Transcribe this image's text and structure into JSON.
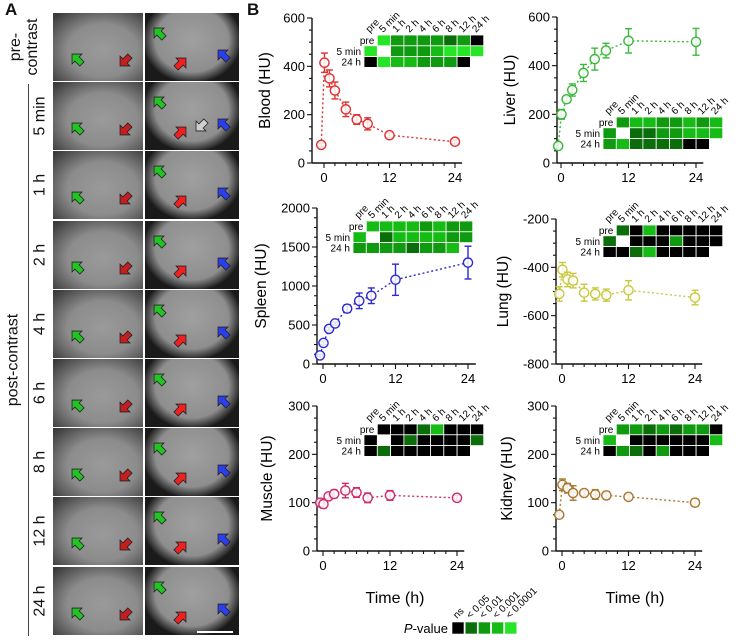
{
  "panel_a": {
    "letter": "A",
    "pre_label": "pre-\ncontrast",
    "post_label": "post-contrast",
    "rows": [
      "pre-contrast",
      "5 min",
      "1 h",
      "2 h",
      "4 h",
      "6 h",
      "8 h",
      "12 h",
      "24 h"
    ],
    "arrow_colors": {
      "lung": "#22c322",
      "blood": "#c41e1e",
      "red": "#f02020",
      "blue": "#2a3ef0",
      "gray": "#cfcfcf"
    }
  },
  "panel_b": {
    "letter": "B",
    "xlabel": "Time (h)"
  },
  "legend": {
    "title_italic": "P",
    "title_rest": "-value",
    "levels": [
      "ns",
      "< 0.05",
      "< 0.01",
      "< 0.001",
      "< 0.0001"
    ],
    "colors": [
      "#000000",
      "#0b6e0b",
      "#109a10",
      "#16bb16",
      "#26e426"
    ]
  },
  "heatmap_columns": [
    "pre",
    "5 min",
    "1 h",
    "2 h",
    "4 h",
    "6 h",
    "8 h",
    "12 h",
    "24 h"
  ],
  "heatmap_rows": [
    "pre",
    "5 min",
    "24 h"
  ],
  "chart_data": [
    {
      "id": "blood",
      "type": "line",
      "ylabel": "Blood (HU)",
      "color": "#e03030",
      "x": [
        -0.5,
        0.083,
        1,
        2,
        4,
        6,
        8,
        12,
        24
      ],
      "y": [
        75,
        415,
        350,
        300,
        222,
        180,
        162,
        115,
        88
      ],
      "err": [
        8,
        40,
        35,
        35,
        30,
        20,
        25,
        10,
        8
      ],
      "ylim": [
        0,
        600
      ],
      "yticks": [
        0,
        200,
        400,
        600
      ],
      "xticks": [
        0,
        12,
        24
      ],
      "heatmap": {
        "pre": [
          4,
          2,
          2,
          2,
          2,
          1,
          2,
          0
        ],
        "5 min": [
          4,
          null,
          2,
          2,
          2,
          3,
          4,
          4,
          4
        ],
        "24 h": [
          0,
          4,
          3,
          3,
          2,
          2,
          2,
          0
        ]
      }
    },
    {
      "id": "liver",
      "type": "line",
      "ylabel": "Liver (HU)",
      "color": "#3cb83c",
      "x": [
        -0.5,
        0.083,
        1,
        2,
        4,
        6,
        8,
        12,
        24
      ],
      "y": [
        70,
        200,
        262,
        300,
        370,
        427,
        462,
        502,
        498
      ],
      "err": [
        8,
        20,
        15,
        25,
        35,
        45,
        30,
        50,
        55
      ],
      "ylim": [
        0,
        600
      ],
      "yticks": [
        0,
        200,
        400,
        600
      ],
      "xticks": [
        0,
        12,
        24
      ],
      "heatmap": {
        "pre": [
          2,
          3,
          3,
          2,
          2,
          3,
          2,
          3
        ],
        "5 min": [
          2,
          null,
          1,
          1,
          2,
          2,
          3,
          3,
          3
        ],
        "24 h": [
          2,
          3,
          1,
          1,
          1,
          1,
          0,
          0
        ]
      }
    },
    {
      "id": "spleen",
      "type": "line",
      "ylabel": "Spleen (HU)",
      "color": "#2b2bd0",
      "x": [
        -0.5,
        0.083,
        1,
        2,
        4,
        6,
        8,
        12,
        24
      ],
      "y": [
        110,
        270,
        450,
        520,
        710,
        810,
        875,
        1080,
        1300
      ],
      "err": [
        15,
        20,
        20,
        20,
        50,
        100,
        100,
        200,
        210
      ],
      "ylim": [
        0,
        2000
      ],
      "yticks": [
        0,
        500,
        1000,
        1500,
        2000
      ],
      "xticks": [
        0,
        12,
        24
      ],
      "heatmap": {
        "pre": [
          3,
          3,
          3,
          3,
          2,
          3,
          2,
          2
        ],
        "5 min": [
          3,
          null,
          1,
          3,
          3,
          3,
          3,
          2,
          2
        ],
        "24 h": [
          2,
          2,
          2,
          2,
          1,
          2,
          2,
          3
        ]
      }
    },
    {
      "id": "lung",
      "type": "line",
      "ylabel": "Lung (HU)",
      "color": "#c8c840",
      "x": [
        -0.5,
        0.083,
        1,
        2,
        4,
        6,
        8,
        12,
        24
      ],
      "y": [
        -510,
        -410,
        -450,
        -455,
        -505,
        -510,
        -515,
        -495,
        -525
      ],
      "err": [
        30,
        30,
        30,
        30,
        35,
        25,
        25,
        40,
        30
      ],
      "ylim": [
        -800,
        -200
      ],
      "yticks": [
        -800,
        -600,
        -400,
        -200
      ],
      "xticks": [
        0,
        12,
        24
      ],
      "heatmap": {
        "pre": [
          1,
          0,
          3,
          0,
          0,
          0,
          0,
          0
        ],
        "5 min": [
          1,
          null,
          0,
          0,
          0,
          2,
          0,
          0,
          0
        ],
        "24 h": [
          0,
          0,
          1,
          3,
          0,
          0,
          0,
          0
        ]
      }
    },
    {
      "id": "muscle",
      "type": "line",
      "ylabel": "Muscle (HU)",
      "color": "#d02a6a",
      "x": [
        -0.5,
        0.083,
        1,
        2,
        4,
        6,
        8,
        12,
        24
      ],
      "y": [
        100,
        97,
        113,
        118,
        125,
        121,
        110,
        115,
        110
      ],
      "err": [
        8,
        8,
        5,
        8,
        15,
        10,
        10,
        10,
        5
      ],
      "ylim": [
        0,
        300
      ],
      "yticks": [
        0,
        100,
        200,
        300
      ],
      "xticks": [
        0,
        12,
        24
      ],
      "heatmap": {
        "pre": [
          0,
          0,
          0,
          1,
          3,
          0,
          0,
          0
        ],
        "5 min": [
          0,
          null,
          0,
          1,
          0,
          0,
          0,
          0,
          1
        ],
        "24 h": [
          0,
          1,
          0,
          0,
          0,
          0,
          0,
          0
        ]
      }
    },
    {
      "id": "kidney",
      "type": "line",
      "ylabel": "Kidney (HU)",
      "color": "#a87830",
      "x": [
        -0.5,
        0.083,
        1,
        2,
        4,
        6,
        8,
        12,
        24
      ],
      "y": [
        75,
        137,
        130,
        120,
        120,
        117,
        115,
        112,
        100
      ],
      "err": [
        5,
        12,
        10,
        15,
        5,
        10,
        8,
        5,
        8
      ],
      "ylim": [
        0,
        300
      ],
      "yticks": [
        0,
        100,
        200,
        300
      ],
      "xticks": [
        0,
        12,
        24
      ],
      "heatmap": {
        "pre": [
          2,
          2,
          1,
          2,
          1,
          2,
          2,
          0
        ],
        "5 min": [
          3,
          null,
          0,
          0,
          0,
          0,
          0,
          0,
          3
        ],
        "24 h": [
          0,
          2,
          1,
          0,
          2,
          0,
          0,
          0
        ]
      }
    }
  ]
}
